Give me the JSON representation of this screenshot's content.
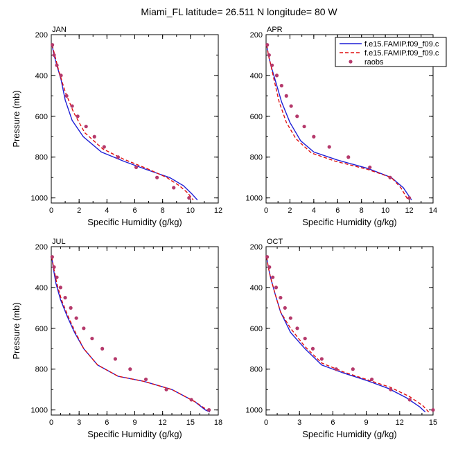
{
  "figure": {
    "title": "Miami_FL  latitude= 26.511 N longitude= 80 W"
  },
  "legend": {
    "placement": "top-right",
    "entries": [
      {
        "name": "f.e15.FAMIP.f09_f09.c",
        "style": "solid",
        "color": "#1f1fd6"
      },
      {
        "name": "f.e15.FAMIP.f09_f09.c",
        "style": "dashed",
        "color": "#e01010"
      },
      {
        "name": "raobs",
        "style": "marker",
        "color": "#b5396b"
      }
    ]
  },
  "chart_data": [
    {
      "type": "line",
      "label": "JAN",
      "xlabel": "Specific Humidity (g/kg)",
      "ylabel": "Pressure (mb)",
      "xlim": [
        0,
        12
      ],
      "ylim": [
        1025,
        200
      ],
      "xticks": [
        0,
        2,
        4,
        6,
        8,
        10,
        12
      ],
      "yticks": [
        200,
        400,
        600,
        800,
        1000
      ],
      "series": [
        {
          "name": "f.e15.FAMIP.f09_f09.c",
          "style": "solid",
          "x": [
            0.05,
            0.2,
            0.4,
            0.7,
            1.0,
            1.5,
            2.3,
            3.6,
            5.2,
            7.0,
            8.5,
            9.5,
            10.1,
            10.5
          ],
          "y": [
            250,
            300,
            350,
            420,
            520,
            620,
            700,
            775,
            820,
            865,
            900,
            940,
            980,
            1010
          ]
        },
        {
          "name": "f.e15.FAMIP.f09_f09.c",
          "style": "dashed",
          "x": [
            0.06,
            0.25,
            0.55,
            1.0,
            1.6,
            2.4,
            3.7,
            5.2,
            7.0,
            8.3,
            9.2,
            9.8,
            10.2
          ],
          "y": [
            250,
            300,
            380,
            480,
            580,
            680,
            760,
            810,
            860,
            900,
            940,
            975,
            1010
          ]
        },
        {
          "name": "raobs",
          "style": "marker",
          "x": [
            0.08,
            0.2,
            0.4,
            0.7,
            1.1,
            1.5,
            1.9,
            2.5,
            3.1,
            3.8,
            4.8,
            6.1,
            7.6,
            8.8,
            9.9
          ],
          "y": [
            250,
            300,
            350,
            400,
            500,
            550,
            600,
            650,
            700,
            750,
            800,
            850,
            900,
            950,
            1000
          ]
        }
      ]
    },
    {
      "type": "line",
      "label": "APR",
      "xlabel": "Specific Humidity (g/kg)",
      "ylabel": "",
      "xlim": [
        0,
        14
      ],
      "ylim": [
        1025,
        200
      ],
      "xticks": [
        0,
        2,
        4,
        6,
        8,
        10,
        12,
        14
      ],
      "yticks": [
        200,
        400,
        600,
        800,
        1000
      ],
      "series": [
        {
          "name": "f.e15.FAMIP.f09_f09.c",
          "style": "solid",
          "x": [
            0.05,
            0.2,
            0.4,
            0.8,
            1.3,
            2.0,
            2.9,
            4.0,
            6.0,
            8.5,
            10.5,
            11.5,
            12.2
          ],
          "y": [
            250,
            300,
            350,
            430,
            530,
            630,
            720,
            775,
            815,
            855,
            900,
            950,
            1010
          ]
        },
        {
          "name": "f.e15.FAMIP.f09_f09.c",
          "style": "dashed",
          "x": [
            0.05,
            0.2,
            0.4,
            0.7,
            1.1,
            1.7,
            2.5,
            3.8,
            5.8,
            8.5,
            10.5,
            11.3,
            11.9
          ],
          "y": [
            250,
            300,
            350,
            430,
            530,
            630,
            710,
            780,
            820,
            860,
            900,
            950,
            1010
          ]
        },
        {
          "name": "raobs",
          "style": "marker",
          "x": [
            0.1,
            0.25,
            0.5,
            0.9,
            1.3,
            1.7,
            2.1,
            2.6,
            3.2,
            4.0,
            5.3,
            6.9,
            8.7,
            10.4,
            12.0
          ],
          "y": [
            250,
            300,
            350,
            400,
            450,
            500,
            550,
            600,
            650,
            700,
            750,
            800,
            850,
            900,
            1000
          ]
        }
      ]
    },
    {
      "type": "line",
      "label": "JUL",
      "xlabel": "Specific Humidity (g/kg)",
      "ylabel": "Pressure (mb)",
      "xlim": [
        0,
        18
      ],
      "ylim": [
        1025,
        200
      ],
      "xticks": [
        0,
        3,
        6,
        9,
        12,
        15,
        18
      ],
      "yticks": [
        200,
        400,
        600,
        800,
        1000
      ],
      "series": [
        {
          "name": "f.e15.FAMIP.f09_f09.c",
          "style": "solid",
          "x": [
            0.05,
            0.2,
            0.5,
            1.0,
            1.7,
            2.5,
            3.5,
            5.0,
            7.2,
            10.0,
            13.0,
            15.5,
            16.6,
            17.1
          ],
          "y": [
            250,
            300,
            380,
            460,
            540,
            620,
            700,
            780,
            835,
            860,
            900,
            960,
            1000,
            1010
          ]
        },
        {
          "name": "f.e15.FAMIP.f09_f09.c",
          "style": "dashed",
          "x": [
            0.05,
            0.25,
            0.6,
            1.1,
            1.8,
            2.6,
            3.5,
            5.0,
            7.2,
            10.0,
            13.0,
            15.5,
            16.8,
            17.2
          ],
          "y": [
            250,
            300,
            380,
            460,
            540,
            620,
            700,
            780,
            835,
            860,
            900,
            960,
            1000,
            1010
          ]
        },
        {
          "name": "raobs",
          "style": "marker",
          "x": [
            0.1,
            0.3,
            0.6,
            1.0,
            1.5,
            2.1,
            2.7,
            3.5,
            4.4,
            5.5,
            6.9,
            8.5,
            10.2,
            12.4,
            15.1,
            17.0
          ],
          "y": [
            250,
            300,
            350,
            400,
            450,
            500,
            550,
            600,
            650,
            700,
            750,
            800,
            850,
            900,
            950,
            1000
          ]
        }
      ]
    },
    {
      "type": "line",
      "label": "OCT",
      "xlabel": "Specific Humidity (g/kg)",
      "ylabel": "",
      "xlim": [
        0,
        15
      ],
      "ylim": [
        1025,
        200
      ],
      "xticks": [
        0,
        3,
        6,
        9,
        12,
        15
      ],
      "yticks": [
        200,
        400,
        600,
        800,
        1000
      ],
      "series": [
        {
          "name": "f.e15.FAMIP.f09_f09.c",
          "style": "solid",
          "x": [
            0.05,
            0.2,
            0.4,
            0.8,
            1.3,
            2.2,
            3.5,
            5.0,
            7.0,
            9.0,
            11.0,
            12.6,
            13.8,
            14.3
          ],
          "y": [
            250,
            300,
            350,
            430,
            520,
            620,
            700,
            780,
            820,
            855,
            895,
            940,
            985,
            1010
          ]
        },
        {
          "name": "f.e15.FAMIP.f09_f09.c",
          "style": "dashed",
          "x": [
            0.05,
            0.2,
            0.4,
            0.8,
            1.3,
            2.2,
            3.5,
            5.0,
            7.0,
            9.0,
            11.2,
            12.9,
            14.1,
            14.6
          ],
          "y": [
            250,
            300,
            350,
            430,
            520,
            600,
            690,
            770,
            815,
            850,
            890,
            935,
            980,
            1010
          ]
        },
        {
          "name": "raobs",
          "style": "marker",
          "x": [
            0.1,
            0.3,
            0.6,
            0.9,
            1.3,
            1.7,
            2.2,
            2.8,
            3.5,
            4.2,
            5.0,
            6.3,
            7.8,
            9.5,
            11.2,
            12.9,
            15.0
          ],
          "y": [
            250,
            300,
            350,
            400,
            450,
            500,
            550,
            600,
            650,
            700,
            750,
            800,
            800,
            850,
            900,
            950,
            1000
          ]
        }
      ]
    }
  ]
}
